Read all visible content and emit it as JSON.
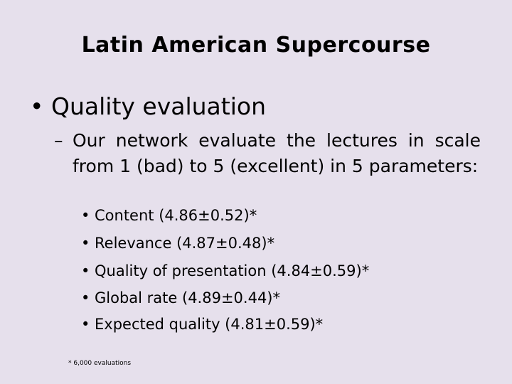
{
  "title": "Latin American Supercourse",
  "bullet1": "Quality evaluation",
  "bullet2": "Our network evaluate  the lectures in scale from 1 (bad) to 5 (excellent) in 5 parameters:",
  "items": [
    "Content (4.86±0.52)*",
    "Relevance (4.87±0.48)*",
    "Quality of presentation (4.84±0.59)*",
    "Global rate (4.89±0.44)*",
    "Expected quality (4.81±0.59)*"
  ],
  "footnote": "* 6,000 evaluations",
  "colors": {
    "background": "#e6e0ec",
    "text": "#000000"
  }
}
